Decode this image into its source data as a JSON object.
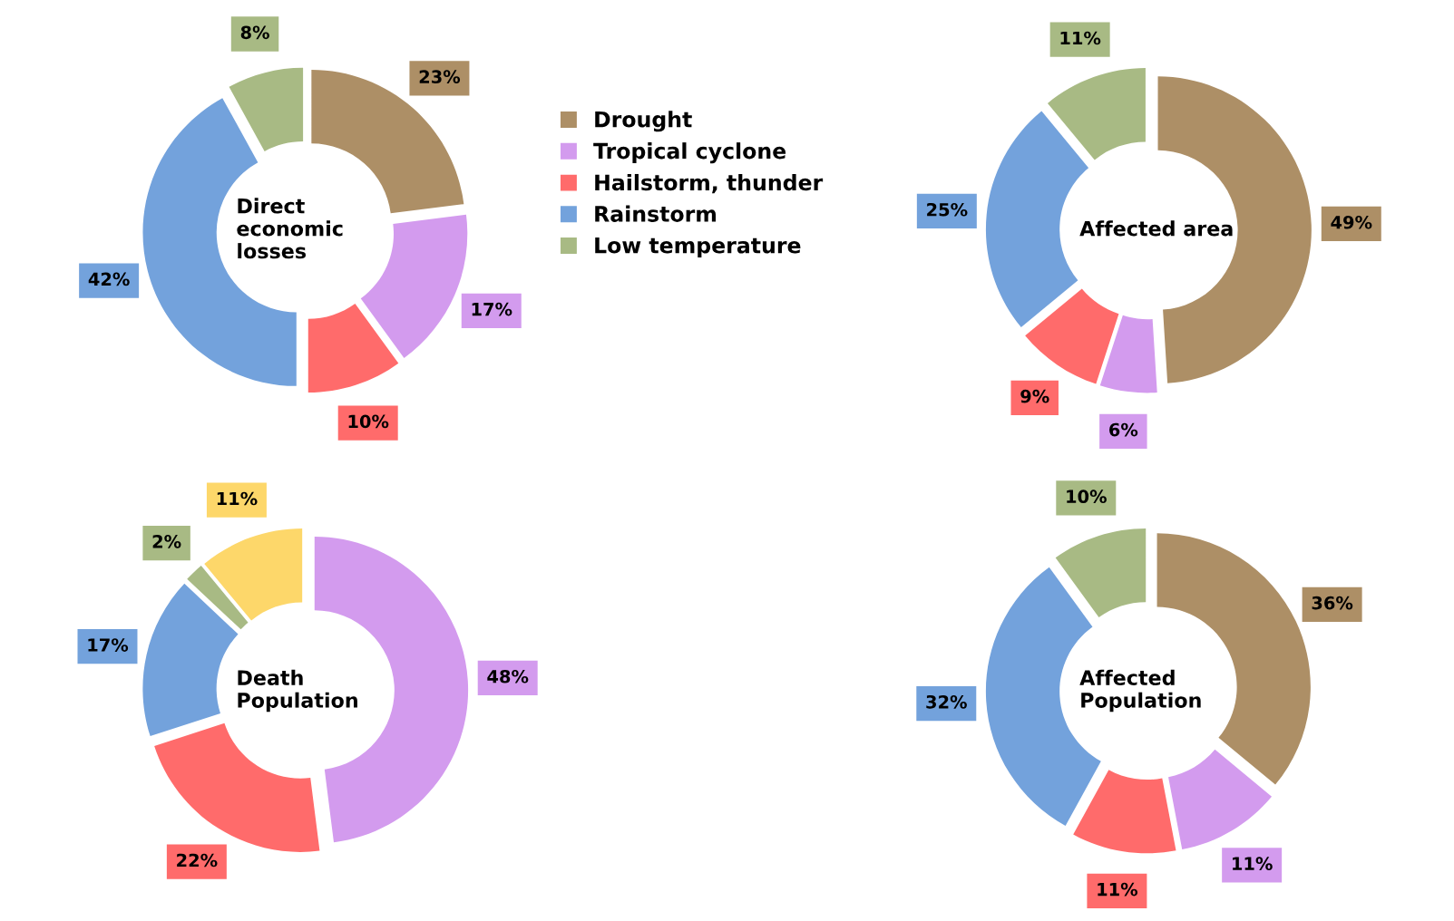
{
  "chart_data": [
    {
      "type": "donut",
      "title": "Direct\neconomic\nlosses",
      "categories": [
        "Drought",
        "Tropical cyclone",
        "Hailstorm, thunder",
        "Rainstorm",
        "Low temperature"
      ],
      "values": [
        23,
        17,
        10,
        42,
        8
      ],
      "colors": [
        "#ad8f66",
        "#d39bee",
        "#ff6b6b",
        "#73a2dc",
        "#a8ba84"
      ],
      "value_labels": [
        "23%",
        "17%",
        "10%",
        "42%",
        "8%"
      ],
      "legend": "right"
    },
    {
      "type": "donut",
      "title": "Affected area",
      "categories": [
        null,
        null,
        null,
        null,
        null
      ],
      "values": [
        49,
        6,
        9,
        25,
        11
      ],
      "colors": [
        "#ad8f66",
        "#d39bee",
        "#ff6b6b",
        "#73a2dc",
        "#a8ba84"
      ],
      "value_labels": [
        "49%",
        "6%",
        "9%",
        "25%",
        "11%"
      ]
    },
    {
      "type": "donut",
      "title": "Death\nPopulation",
      "categories": [
        null,
        null,
        null,
        null,
        null
      ],
      "values": [
        48,
        22,
        17,
        2,
        11
      ],
      "colors": [
        "#d39bee",
        "#ff6b6b",
        "#73a2dc",
        "#a8ba84",
        "#fdd76a"
      ],
      "value_labels": [
        "48%",
        "22%",
        "17%",
        "2%",
        "11%"
      ]
    },
    {
      "type": "donut",
      "title": "Affected\nPopulation",
      "categories": [
        null,
        null,
        null,
        null,
        null
      ],
      "values": [
        36,
        11,
        11,
        32,
        10
      ],
      "colors": [
        "#ad8f66",
        "#d39bee",
        "#ff6b6b",
        "#73a2dc",
        "#a8ba84"
      ],
      "value_labels": [
        "36%",
        "11%",
        "11%",
        "32%",
        "10%"
      ]
    }
  ]
}
